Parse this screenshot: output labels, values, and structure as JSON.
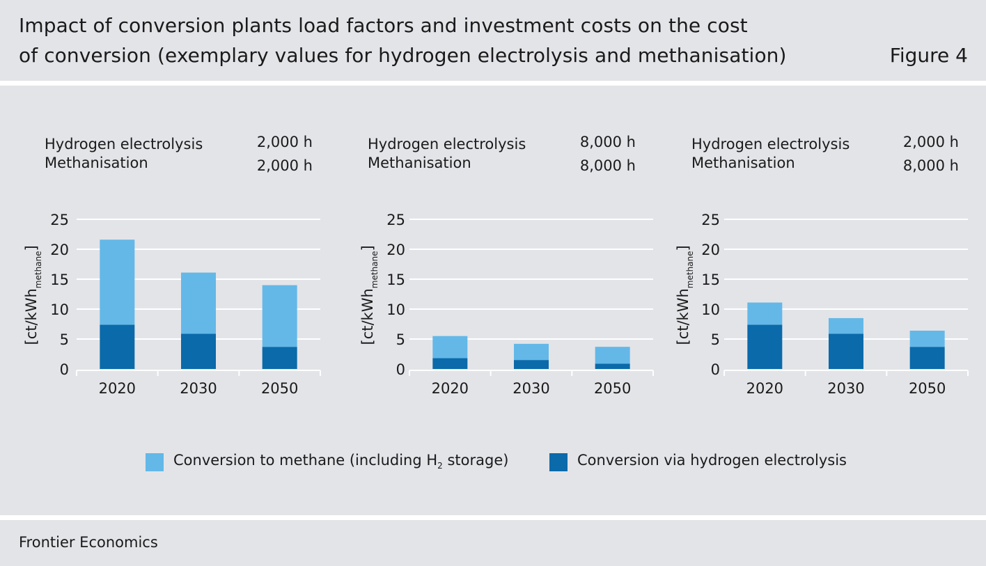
{
  "header": {
    "title_line1": "Impact of conversion plants load factors and investment costs on the cost",
    "title_line2": "of conversion (exemplary values for hydrogen electrolysis and methanisation)",
    "figure_label": "Figure 4"
  },
  "footer": {
    "source": "Frontier Economics"
  },
  "panels": [
    {
      "row1_label": "Hydrogen electrolysis",
      "row1_value": "2,000 h",
      "row2_label": "Methanisation",
      "row2_value": "2,000 h"
    },
    {
      "row1_label": "Hydrogen electrolysis",
      "row1_value": "8,000 h",
      "row2_label": "Methanisation",
      "row2_value": "8,000 h"
    },
    {
      "row1_label": "Hydrogen electrolysis",
      "row1_value": "2,000 h",
      "row2_label": "Methanisation",
      "row2_value": "8,000 h"
    }
  ],
  "legend": {
    "methane_label_pre": "Conversion to methane (including H",
    "methane_label_sub": "2",
    "methane_label_post": " storage)",
    "electrolysis_label": "Conversion via hydrogen electrolysis"
  },
  "colors": {
    "methane": "#63b8e8",
    "electrolysis": "#0a6aaa",
    "background": "#e3e4e8",
    "grid": "#ffffff"
  },
  "chart_data": [
    {
      "type": "bar",
      "stacked": true,
      "categories": [
        "2020",
        "2030",
        "2050"
      ],
      "ylabel_main": "[ct/kWh",
      "ylabel_sub": "methane",
      "ylabel_end": "]",
      "yticks": [
        0,
        5,
        10,
        15,
        20,
        25
      ],
      "ylim": [
        0,
        25
      ],
      "series": [
        {
          "name": "Conversion via hydrogen electrolysis",
          "values": [
            7.4,
            5.9,
            3.7
          ]
        },
        {
          "name": "Conversion to methane (including H2 storage)",
          "values": [
            14.2,
            10.2,
            10.3
          ]
        }
      ]
    },
    {
      "type": "bar",
      "stacked": true,
      "categories": [
        "2020",
        "2030",
        "2050"
      ],
      "ylabel_main": "[ct/kWh",
      "ylabel_sub": "methane",
      "ylabel_end": "]",
      "yticks": [
        0,
        5,
        10,
        15,
        20,
        25
      ],
      "ylim": [
        0,
        25
      ],
      "series": [
        {
          "name": "Conversion via hydrogen electrolysis",
          "values": [
            1.8,
            1.5,
            0.9
          ]
        },
        {
          "name": "Conversion to methane (including H2 storage)",
          "values": [
            3.7,
            2.7,
            2.8
          ]
        }
      ]
    },
    {
      "type": "bar",
      "stacked": true,
      "categories": [
        "2020",
        "2030",
        "2050"
      ],
      "ylabel_main": "[ct/kWh",
      "ylabel_sub": "methane",
      "ylabel_end": "]",
      "yticks": [
        0,
        5,
        10,
        15,
        20,
        25
      ],
      "ylim": [
        0,
        25
      ],
      "series": [
        {
          "name": "Conversion via hydrogen electrolysis",
          "values": [
            7.4,
            5.9,
            3.7
          ]
        },
        {
          "name": "Conversion to methane (including H2 storage)",
          "values": [
            3.7,
            2.6,
            2.7
          ]
        }
      ]
    }
  ]
}
